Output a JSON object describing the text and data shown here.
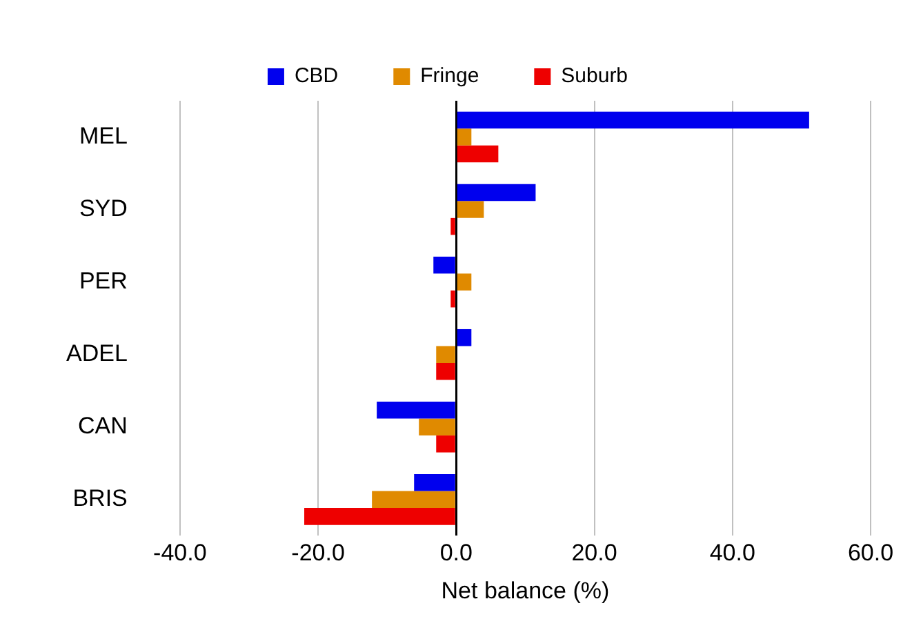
{
  "chart_data": {
    "type": "bar",
    "orientation": "horizontal",
    "xlabel": "Net balance (%)",
    "categories": [
      "MEL",
      "SYD",
      "PER",
      "ADEL",
      "CAN",
      "BRIS"
    ],
    "series": [
      {
        "name": "CBD",
        "color": "#0000ee",
        "values": [
          51.1,
          11.5,
          -3.3,
          2.2,
          -11.5,
          -6.1
        ]
      },
      {
        "name": "Fringe",
        "color": "#e08a00",
        "values": [
          2.2,
          4.0,
          2.2,
          -2.9,
          -5.4,
          -12.2
        ]
      },
      {
        "name": "Suburb",
        "color": "#ee0000",
        "values": [
          6.1,
          -0.8,
          -0.8,
          -2.9,
          -2.9,
          -22.0
        ]
      }
    ],
    "xlim": [
      -40,
      60
    ],
    "xticks": [
      {
        "value": -40,
        "label": "-40.0"
      },
      {
        "value": -20,
        "label": "-20.0"
      },
      {
        "value": 0,
        "label": "0.0"
      },
      {
        "value": 20,
        "label": "20.0"
      },
      {
        "value": 40,
        "label": "40.0"
      },
      {
        "value": 60,
        "label": "60.0"
      }
    ],
    "grid": "x",
    "legend": "top"
  }
}
